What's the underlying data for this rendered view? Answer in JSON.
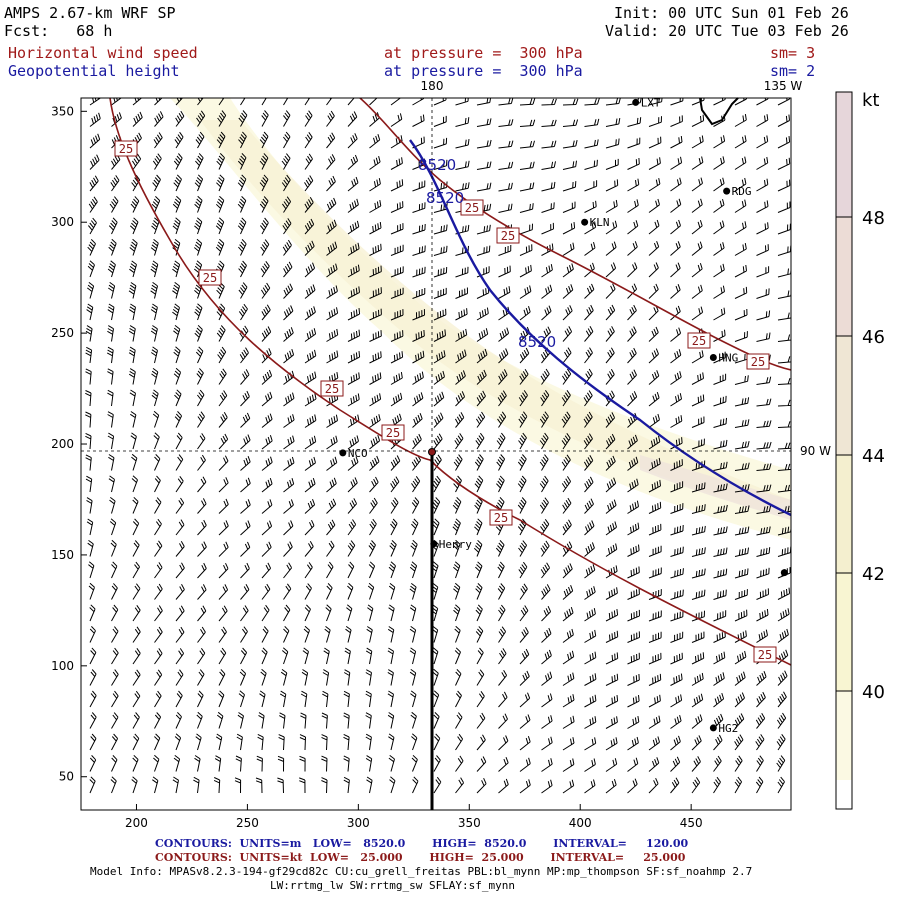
{
  "header": {
    "model": "AMPS 2.67-km WRF SP",
    "fcst": "Fcst:   68 h",
    "init": "Init: 00 UTC Sun 01 Feb 26",
    "valid": "Valid: 20 UTC Tue 03 Feb 26",
    "field1": "Horizontal wind speed",
    "field1_level": "at pressure =  300 hPa",
    "field1_sm": "sm= 3",
    "field2": "Geopotential height",
    "field2_level": "at pressure =  300 hPa",
    "field2_sm": "sm= 2"
  },
  "map": {
    "x_ticks": [
      "200",
      "250",
      "300",
      "350",
      "400",
      "450"
    ],
    "y_ticks": [
      "350",
      "300",
      "250",
      "200",
      "150",
      "100",
      "50"
    ],
    "lon_labels": {
      "top_180": "180",
      "top_135w": "135 W",
      "right_90w": "90 W"
    },
    "stations": [
      {
        "name": "LXT",
        "x": 425,
        "y": 354
      },
      {
        "name": "RDG",
        "x": 466,
        "y": 314
      },
      {
        "name": "KLN",
        "x": 402,
        "y": 300
      },
      {
        "name": "HNG",
        "x": 460,
        "y": 239
      },
      {
        "name": "NCO",
        "x": 293,
        "y": 196
      },
      {
        "name": "Henry",
        "x": 334,
        "y": 155
      },
      {
        "name": "HG2",
        "x": 460,
        "y": 72
      },
      {
        "name": "",
        "x": 492,
        "y": 142
      }
    ],
    "wind_contour_label": "25",
    "height_contour_label": "8520"
  },
  "colorbar": {
    "unit": "kt",
    "labels": [
      "48",
      "46",
      "44",
      "42",
      "40"
    ],
    "colors": [
      "#e6d6da",
      "#ecdcd6",
      "#efe6d4",
      "#f4efcf",
      "#f8f5d2",
      "#fbf9e3",
      "#ffffff"
    ]
  },
  "footer": {
    "contours1": "CONTOURS:  UNITS=m   LOW=   8520.0       HIGH=  8520.0       INTERVAL=     120.00",
    "contours2": "CONTOURS:  UNITS=kt  LOW=   25.000       HIGH=  25.000       INTERVAL=     25.000",
    "model_info1": "Model Info: MPASv8.2.3-194-gf29cd82c CU:cu_grell_freitas PBL:bl_mynn MP:mp_thompson SF:sf_noahmp 2.7",
    "model_info2": "LW:rrtmg_lw SW:rrtmg_sw SFLAY:sf_mynn"
  }
}
